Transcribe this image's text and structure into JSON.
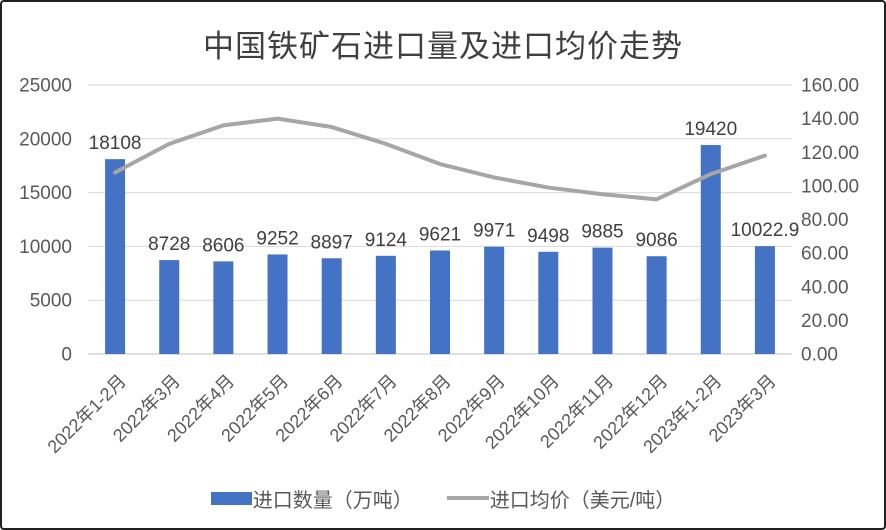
{
  "chart_data": {
    "type": "bar+line",
    "title": "中国铁矿石进口量及进口均价走势",
    "categories": [
      "2022年1-2月",
      "2022年3月",
      "2022年4月",
      "2022年5月",
      "2022年6月",
      "2022年7月",
      "2022年8月",
      "2022年9月",
      "2022年10月",
      "2022年11月",
      "2022年12月",
      "2023年1-2月",
      "2023年3月"
    ],
    "series": [
      {
        "name": "进口数量（万吨）",
        "type": "bar",
        "axis": "left",
        "color": "#4472C4",
        "values": [
          18108,
          8728,
          8606,
          9252,
          8897,
          9124,
          9621,
          9971,
          9498,
          9885,
          9086,
          19420,
          10022.9
        ],
        "data_labels": true
      },
      {
        "name": "进口均价（美元/吨）",
        "type": "line",
        "axis": "right",
        "color": "#A6A6A6",
        "values": [
          108,
          125,
          136,
          140,
          135,
          125,
          113,
          105,
          99,
          95,
          92,
          107,
          118
        ],
        "data_labels": false,
        "values_estimated_from_pixels": true
      }
    ],
    "left_axis": {
      "min": 0,
      "max": 25000,
      "step": 5000,
      "decimals": 0,
      "tick_labels": [
        "0",
        "5000",
        "10000",
        "15000",
        "20000",
        "25000"
      ]
    },
    "right_axis": {
      "min": 0,
      "max": 160,
      "step": 20,
      "decimals": 2,
      "tick_labels": [
        "0.00",
        "20.00",
        "40.00",
        "60.00",
        "80.00",
        "100.00",
        "120.00",
        "140.00",
        "160.00"
      ]
    },
    "grid": true,
    "legend_position": "bottom",
    "x_label_rotation_deg": -45
  },
  "colors": {
    "bar": "#4472C4",
    "line": "#A6A6A6",
    "gridline": "#D9D9D9",
    "axis_line": "#BFBFBF",
    "title_text": "#404040",
    "data_label_text": "#404040",
    "axis_text": "#595959",
    "legend_text": "#595959",
    "frame_border": "#202020",
    "background": "#FFFFFF"
  }
}
